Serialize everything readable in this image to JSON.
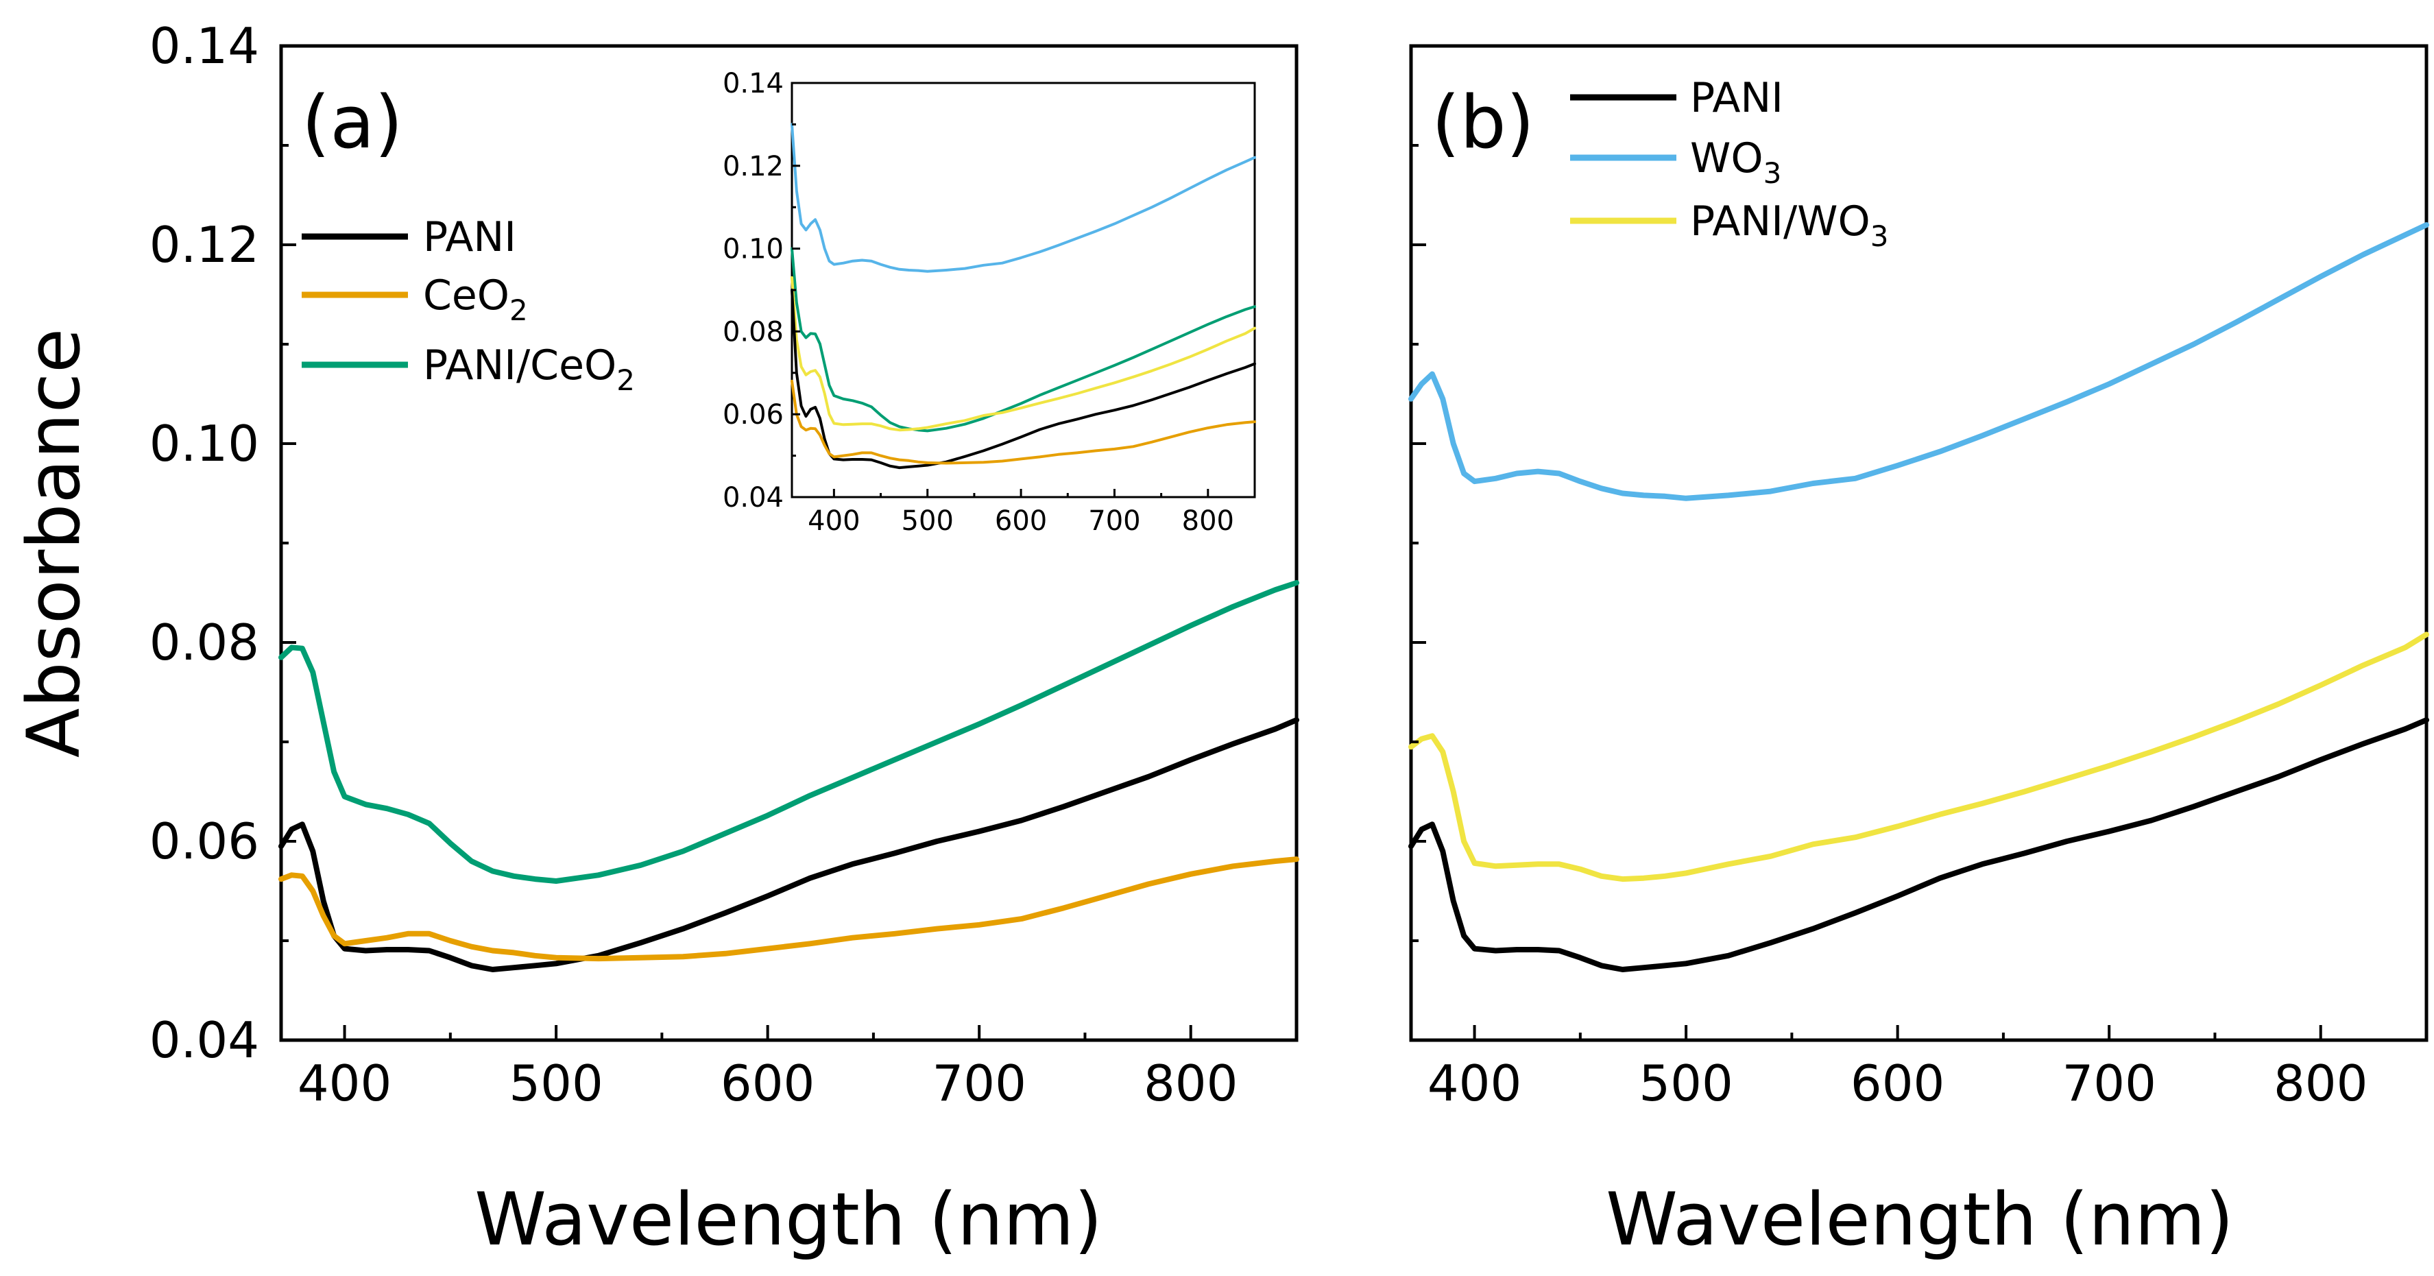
{
  "colors": {
    "PANI": "#000000",
    "CeO2": "#E69F00",
    "PANI_CeO2": "#009E73",
    "WO3": "#56B4E9",
    "PANI_WO3": "#F0E442"
  },
  "chart_data": [
    {
      "type": "line",
      "panel_label": "(a)",
      "xlabel": "Wavelength (nm)",
      "ylabel": "Absorbance",
      "xlim": [
        370,
        850
      ],
      "ylim": [
        0.04,
        0.14
      ],
      "xticks": [
        "400",
        "500",
        "600",
        "700",
        "800"
      ],
      "yticks": [
        "0.04",
        "0.06",
        "0.08",
        "0.10",
        "0.12",
        "0.14"
      ],
      "x": [
        370,
        375,
        380,
        385,
        390,
        395,
        400,
        410,
        420,
        430,
        440,
        450,
        460,
        470,
        480,
        490,
        500,
        520,
        540,
        560,
        580,
        600,
        620,
        640,
        660,
        680,
        700,
        720,
        740,
        760,
        780,
        800,
        820,
        840,
        850
      ],
      "legend_position": "upper-left",
      "series": [
        {
          "key": "PANI",
          "name": "PANI",
          "name_sub": "",
          "name_tail": "",
          "values": [
            0.0595,
            0.0612,
            0.0617,
            0.059,
            0.054,
            0.0505,
            0.0492,
            0.049,
            0.0491,
            0.0491,
            0.049,
            0.0483,
            0.0475,
            0.0471,
            0.0473,
            0.0475,
            0.0477,
            0.0485,
            0.0498,
            0.0512,
            0.0528,
            0.0545,
            0.0563,
            0.0577,
            0.0588,
            0.06,
            0.061,
            0.0621,
            0.0635,
            0.065,
            0.0665,
            0.0682,
            0.0698,
            0.0713,
            0.0722
          ]
        },
        {
          "key": "CeO2",
          "name": "CeO",
          "name_sub": "2",
          "name_tail": "",
          "values": [
            0.0562,
            0.0566,
            0.0565,
            0.055,
            0.0525,
            0.0505,
            0.0497,
            0.05,
            0.0503,
            0.0507,
            0.0507,
            0.05,
            0.0494,
            0.049,
            0.0488,
            0.0485,
            0.0483,
            0.0482,
            0.0483,
            0.0484,
            0.0487,
            0.0492,
            0.0497,
            0.0503,
            0.0507,
            0.0512,
            0.0516,
            0.0522,
            0.0533,
            0.0545,
            0.0557,
            0.0567,
            0.0575,
            0.058,
            0.0582
          ]
        },
        {
          "key": "PANI_CeO2",
          "name": "PANI/CeO",
          "name_sub": "2",
          "name_tail": "",
          "values": [
            0.0785,
            0.0795,
            0.0794,
            0.077,
            0.072,
            0.067,
            0.0645,
            0.0637,
            0.0633,
            0.0627,
            0.0618,
            0.0598,
            0.058,
            0.057,
            0.0565,
            0.0562,
            0.056,
            0.0566,
            0.0576,
            0.059,
            0.0608,
            0.0626,
            0.0646,
            0.0664,
            0.0682,
            0.07,
            0.0718,
            0.0737,
            0.0757,
            0.0777,
            0.0797,
            0.0817,
            0.0836,
            0.0853,
            0.086
          ]
        }
      ],
      "inset": {
        "xlim": [
          355,
          850
        ],
        "ylim": [
          0.04,
          0.14
        ],
        "xticks": [
          "400",
          "500",
          "600",
          "700",
          "800"
        ],
        "yticks": [
          "0.04",
          "0.06",
          "0.08",
          "0.10",
          "0.12",
          "0.14"
        ],
        "x": [
          355,
          360,
          365,
          370,
          375,
          380,
          385,
          390,
          395,
          400,
          410,
          420,
          430,
          440,
          450,
          460,
          470,
          480,
          490,
          500,
          520,
          540,
          560,
          580,
          600,
          620,
          640,
          660,
          680,
          700,
          720,
          740,
          760,
          780,
          800,
          820,
          840,
          850
        ],
        "series": [
          {
            "key": "WO3",
            "values": [
              0.13,
              0.114,
              0.106,
              0.1045,
              0.106,
              0.107,
              0.1045,
              0.1,
              0.097,
              0.0962,
              0.0965,
              0.097,
              0.0972,
              0.097,
              0.0962,
              0.0955,
              0.095,
              0.0948,
              0.0947,
              0.0945,
              0.0948,
              0.0952,
              0.096,
              0.0965,
              0.0978,
              0.0992,
              0.1008,
              0.1025,
              0.1042,
              0.106,
              0.108,
              0.11,
              0.1122,
              0.1145,
              0.1168,
              0.119,
              0.121,
              0.122
            ]
          },
          {
            "key": "PANI_CeO2",
            "values": [
              0.1,
              0.087,
              0.08,
              0.0785,
              0.0795,
              0.0794,
              0.077,
              0.072,
              0.067,
              0.0645,
              0.0637,
              0.0633,
              0.0627,
              0.0618,
              0.0598,
              0.058,
              0.057,
              0.0565,
              0.0562,
              0.056,
              0.0566,
              0.0576,
              0.059,
              0.0608,
              0.0626,
              0.0646,
              0.0664,
              0.0682,
              0.07,
              0.0718,
              0.0737,
              0.0757,
              0.0777,
              0.0797,
              0.0817,
              0.0836,
              0.0853,
              0.086
            ]
          },
          {
            "key": "PANI_WO3",
            "values": [
              0.093,
              0.078,
              0.0715,
              0.0695,
              0.0703,
              0.0706,
              0.069,
              0.065,
              0.06,
              0.0578,
              0.0575,
              0.0576,
              0.0577,
              0.0577,
              0.0572,
              0.0565,
              0.0562,
              0.0563,
              0.0565,
              0.0568,
              0.0577,
              0.0585,
              0.0597,
              0.0604,
              0.0615,
              0.0627,
              0.0638,
              0.065,
              0.0663,
              0.0676,
              0.069,
              0.0705,
              0.0721,
              0.0738,
              0.0757,
              0.0777,
              0.0795,
              0.0808
            ]
          },
          {
            "key": "PANI",
            "values": [
              0.09,
              0.07,
              0.062,
              0.0595,
              0.0612,
              0.0617,
              0.059,
              0.054,
              0.0505,
              0.0492,
              0.049,
              0.0491,
              0.0491,
              0.049,
              0.0483,
              0.0475,
              0.0471,
              0.0473,
              0.0475,
              0.0477,
              0.0485,
              0.0498,
              0.0512,
              0.0528,
              0.0545,
              0.0563,
              0.0577,
              0.0588,
              0.06,
              0.061,
              0.0621,
              0.0635,
              0.065,
              0.0665,
              0.0682,
              0.0698,
              0.0713,
              0.0722
            ]
          },
          {
            "key": "CeO2",
            "values": [
              0.068,
              0.06,
              0.057,
              0.0562,
              0.0566,
              0.0565,
              0.055,
              0.0525,
              0.0505,
              0.0497,
              0.05,
              0.0503,
              0.0507,
              0.0507,
              0.05,
              0.0494,
              0.049,
              0.0488,
              0.0485,
              0.0483,
              0.0482,
              0.0483,
              0.0484,
              0.0487,
              0.0492,
              0.0497,
              0.0503,
              0.0507,
              0.0512,
              0.0516,
              0.0522,
              0.0533,
              0.0545,
              0.0557,
              0.0567,
              0.0575,
              0.058,
              0.0582
            ]
          }
        ]
      }
    },
    {
      "type": "line",
      "panel_label": "(b)",
      "xlabel": "Wavelength (nm)",
      "ylabel": "",
      "xlim": [
        370,
        850
      ],
      "ylim": [
        0.04,
        0.14
      ],
      "xticks": [
        "400",
        "500",
        "600",
        "700",
        "800"
      ],
      "yticks": [],
      "x": [
        370,
        375,
        380,
        385,
        390,
        395,
        400,
        410,
        420,
        430,
        440,
        450,
        460,
        470,
        480,
        490,
        500,
        520,
        540,
        560,
        580,
        600,
        620,
        640,
        660,
        680,
        700,
        720,
        740,
        760,
        780,
        800,
        820,
        840,
        850
      ],
      "legend_position": "upper-left",
      "series": [
        {
          "key": "PANI",
          "name": "PANI",
          "name_sub": "",
          "name_tail": "",
          "values": [
            0.0595,
            0.0612,
            0.0617,
            0.059,
            0.054,
            0.0505,
            0.0492,
            0.049,
            0.0491,
            0.0491,
            0.049,
            0.0483,
            0.0475,
            0.0471,
            0.0473,
            0.0475,
            0.0477,
            0.0485,
            0.0498,
            0.0512,
            0.0528,
            0.0545,
            0.0563,
            0.0577,
            0.0588,
            0.06,
            0.061,
            0.0621,
            0.0635,
            0.065,
            0.0665,
            0.0682,
            0.0698,
            0.0713,
            0.0722
          ]
        },
        {
          "key": "WO3",
          "name": "WO",
          "name_sub": "3",
          "name_tail": "",
          "values": [
            0.1045,
            0.106,
            0.107,
            0.1045,
            0.1,
            0.097,
            0.0962,
            0.0965,
            0.097,
            0.0972,
            0.097,
            0.0962,
            0.0955,
            0.095,
            0.0948,
            0.0947,
            0.0945,
            0.0948,
            0.0952,
            0.096,
            0.0965,
            0.0978,
            0.0992,
            0.1008,
            0.1025,
            0.1042,
            0.106,
            0.108,
            0.11,
            0.1122,
            0.1145,
            0.1168,
            0.119,
            0.121,
            0.122
          ]
        },
        {
          "key": "PANI_WO3",
          "name": "PANI/WO",
          "name_sub": "3",
          "name_tail": "",
          "values": [
            0.0695,
            0.0703,
            0.0706,
            0.069,
            0.065,
            0.06,
            0.0578,
            0.0575,
            0.0576,
            0.0577,
            0.0577,
            0.0572,
            0.0565,
            0.0562,
            0.0563,
            0.0565,
            0.0568,
            0.0577,
            0.0585,
            0.0597,
            0.0604,
            0.0615,
            0.0627,
            0.0638,
            0.065,
            0.0663,
            0.0676,
            0.069,
            0.0705,
            0.0721,
            0.0738,
            0.0757,
            0.0777,
            0.0795,
            0.0808
          ]
        }
      ]
    }
  ]
}
